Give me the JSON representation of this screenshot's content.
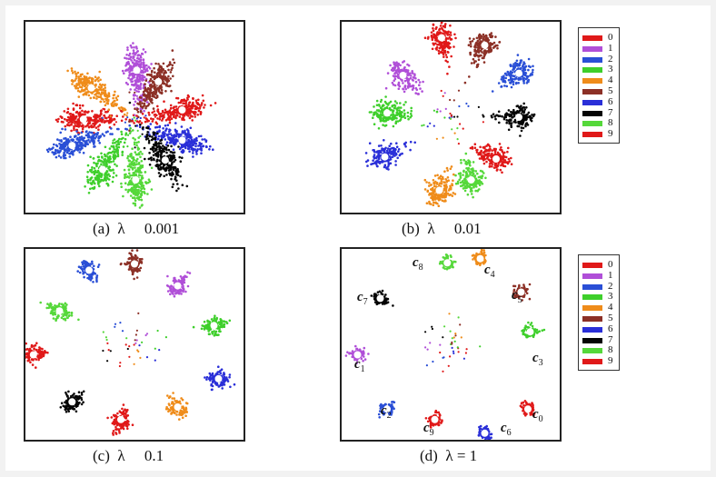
{
  "legend": {
    "labels": [
      "0",
      "1",
      "2",
      "3",
      "4",
      "5",
      "6",
      "7",
      "8",
      "9"
    ],
    "colors": [
      "#e01919",
      "#b04fd8",
      "#2a4fd6",
      "#3ecf2b",
      "#ef8c1a",
      "#8c3026",
      "#2a2fd8",
      "#050505",
      "#55d83a",
      "#e01919"
    ]
  },
  "captions": {
    "a": "(a)  λ     0.001",
    "b": "(b)  λ     0.01",
    "c": "(c)  λ     0.1",
    "d": "(d)  λ = 1"
  },
  "center_labels": {
    "c0": {
      "letter": "c",
      "sub": "0"
    },
    "c1": {
      "letter": "c",
      "sub": "1"
    },
    "c2": {
      "letter": "c",
      "sub": "2"
    },
    "c3": {
      "letter": "c",
      "sub": "3"
    },
    "c4": {
      "letter": "c",
      "sub": "4"
    },
    "c5": {
      "letter": "c",
      "sub": "5"
    },
    "c6": {
      "letter": "c",
      "sub": "6"
    },
    "c7": {
      "letter": "c",
      "sub": "7"
    },
    "c8": {
      "letter": "c",
      "sub": "8"
    },
    "c9": {
      "letter": "c",
      "sub": "9"
    }
  },
  "chart_data": [
    {
      "type": "scatter",
      "caption": "(a) λ 0.001",
      "series": [
        {
          "name": "0",
          "center": [
            -0.45,
            -0.02
          ],
          "angle_deg": 180
        },
        {
          "name": "1",
          "center": [
            0.02,
            0.45
          ],
          "angle_deg": 95
        },
        {
          "name": "2",
          "center": [
            -0.55,
            -0.27
          ],
          "angle_deg": 200
        },
        {
          "name": "3",
          "center": [
            -0.28,
            -0.5
          ],
          "angle_deg": 240
        },
        {
          "name": "4",
          "center": [
            -0.38,
            0.28
          ],
          "angle_deg": 145
        },
        {
          "name": "5",
          "center": [
            0.21,
            0.34
          ],
          "angle_deg": 60
        },
        {
          "name": "6",
          "center": [
            0.42,
            -0.22
          ],
          "angle_deg": 340
        },
        {
          "name": "7",
          "center": [
            0.27,
            -0.41
          ],
          "angle_deg": 300
        },
        {
          "name": "8",
          "center": [
            0.01,
            -0.6
          ],
          "angle_deg": 270
        },
        {
          "name": "9",
          "center": [
            0.42,
            0.07
          ],
          "angle_deg": 15
        }
      ]
    },
    {
      "type": "scatter",
      "caption": "(b) λ 0.01",
      "series": [
        {
          "name": "0",
          "center": [
            0.4,
            -0.4
          ],
          "angle_deg": 330
        },
        {
          "name": "1",
          "center": [
            -0.42,
            0.4
          ],
          "angle_deg": 130
        },
        {
          "name": "2",
          "center": [
            0.6,
            0.42
          ],
          "angle_deg": 30
        },
        {
          "name": "3",
          "center": [
            -0.56,
            0.04
          ],
          "angle_deg": 180
        },
        {
          "name": "4",
          "center": [
            -0.1,
            -0.7
          ],
          "angle_deg": 250
        },
        {
          "name": "5",
          "center": [
            0.3,
            0.69
          ],
          "angle_deg": 65
        },
        {
          "name": "6",
          "center": [
            -0.58,
            -0.38
          ],
          "angle_deg": 210
        },
        {
          "name": "7",
          "center": [
            0.6,
            0.0
          ],
          "angle_deg": 0
        },
        {
          "name": "8",
          "center": [
            0.18,
            -0.6
          ],
          "angle_deg": 285
        },
        {
          "name": "9",
          "center": [
            -0.08,
            0.76
          ],
          "angle_deg": 100
        }
      ]
    },
    {
      "type": "scatter",
      "caption": "(c) λ 0.1",
      "series": [
        {
          "name": "0",
          "center": [
            -0.12,
            -0.72
          ],
          "angle_deg": 250
        },
        {
          "name": "1",
          "center": [
            0.38,
            0.56
          ],
          "angle_deg": 50
        },
        {
          "name": "2",
          "center": [
            -0.4,
            0.71
          ],
          "angle_deg": 120
        },
        {
          "name": "3",
          "center": [
            0.7,
            0.18
          ],
          "angle_deg": 10
        },
        {
          "name": "4",
          "center": [
            0.38,
            -0.6
          ],
          "angle_deg": 300
        },
        {
          "name": "5",
          "center": [
            0.0,
            0.77
          ],
          "angle_deg": 90
        },
        {
          "name": "6",
          "center": [
            0.74,
            -0.33
          ],
          "angle_deg": 340
        },
        {
          "name": "7",
          "center": [
            -0.55,
            -0.55
          ],
          "angle_deg": 220
        },
        {
          "name": "8",
          "center": [
            -0.66,
            0.32
          ],
          "angle_deg": 155
        },
        {
          "name": "9",
          "center": [
            -0.89,
            -0.1
          ],
          "angle_deg": 185
        }
      ]
    },
    {
      "type": "scatter",
      "caption": "(d) λ = 1",
      "series": [
        {
          "name": "0",
          "center": [
            0.68,
            -0.62
          ],
          "angle_deg": 320
        },
        {
          "name": "1",
          "center": [
            -0.82,
            -0.1
          ],
          "angle_deg": 185
        },
        {
          "name": "2",
          "center": [
            -0.56,
            -0.62
          ],
          "angle_deg": 225
        },
        {
          "name": "3",
          "center": [
            0.7,
            0.12
          ],
          "angle_deg": 10
        },
        {
          "name": "4",
          "center": [
            0.26,
            0.82
          ],
          "angle_deg": 70
        },
        {
          "name": "5",
          "center": [
            0.62,
            0.5
          ],
          "angle_deg": 40
        },
        {
          "name": "6",
          "center": [
            0.3,
            -0.85
          ],
          "angle_deg": 290
        },
        {
          "name": "7",
          "center": [
            -0.62,
            0.44
          ],
          "angle_deg": 145
        },
        {
          "name": "8",
          "center": [
            -0.03,
            0.78
          ],
          "angle_deg": 95
        },
        {
          "name": "9",
          "center": [
            -0.14,
            -0.72
          ],
          "angle_deg": 250
        }
      ]
    }
  ]
}
